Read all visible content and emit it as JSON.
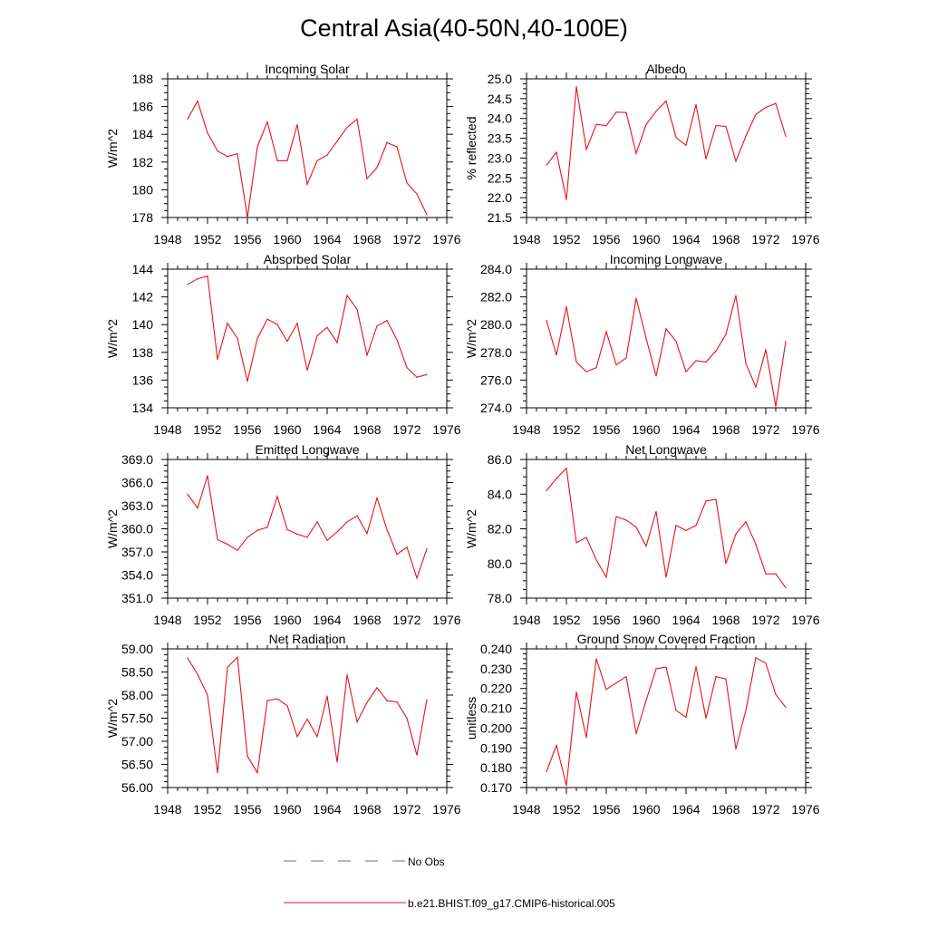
{
  "figure": {
    "title": "Central Asia(40-50N,40-100E)",
    "line_color": "#e8101a",
    "obs_color": "#5b6ab8"
  },
  "legend": {
    "obs_label": "No Obs",
    "model_label": "b.e21.BHIST.f09_g17.CMIP6-historical.005"
  },
  "chart_data": [
    {
      "type": "line",
      "title": "Incoming Solar",
      "ylabel": "W/m^2",
      "xlim": [
        1948,
        1976
      ],
      "xticks": [
        1948,
        1952,
        1956,
        1960,
        1964,
        1968,
        1972,
        1976
      ],
      "ylim": [
        178,
        188
      ],
      "yticks": [
        "178",
        "180",
        "182",
        "184",
        "186",
        "188"
      ],
      "ymajor": 2,
      "yminor": 0.5,
      "x": [
        1950,
        1951,
        1952,
        1953,
        1954,
        1955,
        1956,
        1957,
        1958,
        1959,
        1960,
        1961,
        1962,
        1963,
        1964,
        1965,
        1966,
        1967,
        1968,
        1969,
        1970,
        1971,
        1972,
        1973,
        1974
      ],
      "values": [
        185.1,
        186.4,
        184.1,
        182.8,
        182.4,
        182.6,
        178.0,
        183.1,
        184.9,
        182.1,
        182.1,
        184.7,
        180.4,
        182.1,
        182.5,
        183.5,
        184.5,
        185.1,
        180.8,
        181.6,
        183.4,
        183.1,
        180.5,
        179.7,
        178.2
      ]
    },
    {
      "type": "line",
      "title": "Albedo",
      "ylabel": "% reflected",
      "xlim": [
        1948,
        1976
      ],
      "xticks": [
        1948,
        1952,
        1956,
        1960,
        1964,
        1968,
        1972,
        1976
      ],
      "ylim": [
        21.5,
        25.0
      ],
      "yticks": [
        "21.5",
        "22.0",
        "22.5",
        "23.0",
        "23.5",
        "24.0",
        "24.5",
        "25.0"
      ],
      "ymajor": 0.5,
      "yminor": 0.125,
      "x": [
        1950,
        1951,
        1952,
        1953,
        1954,
        1955,
        1956,
        1957,
        1958,
        1959,
        1960,
        1961,
        1962,
        1963,
        1964,
        1965,
        1966,
        1967,
        1968,
        1969,
        1970,
        1971,
        1972,
        1973,
        1974
      ],
      "values": [
        22.82,
        23.15,
        21.95,
        24.8,
        23.22,
        23.85,
        23.82,
        24.16,
        24.15,
        23.12,
        23.85,
        24.18,
        24.44,
        23.52,
        23.32,
        24.35,
        22.98,
        23.82,
        23.8,
        22.92,
        23.55,
        24.1,
        24.28,
        24.38,
        23.55
      ]
    },
    {
      "type": "line",
      "title": "Absorbed Solar",
      "ylabel": "W/m^2",
      "xlim": [
        1948,
        1976
      ],
      "xticks": [
        1948,
        1952,
        1956,
        1960,
        1964,
        1968,
        1972,
        1976
      ],
      "ylim": [
        134,
        144
      ],
      "yticks": [
        "134",
        "136",
        "138",
        "140",
        "142",
        "144"
      ],
      "ymajor": 2,
      "yminor": 0.5,
      "x": [
        1950,
        1951,
        1952,
        1953,
        1954,
        1955,
        1956,
        1957,
        1958,
        1959,
        1960,
        1961,
        1962,
        1963,
        1964,
        1965,
        1966,
        1967,
        1968,
        1969,
        1970,
        1971,
        1972,
        1973,
        1974
      ],
      "values": [
        142.9,
        143.3,
        143.5,
        137.5,
        140.1,
        139.0,
        135.9,
        139.0,
        140.4,
        140.0,
        138.8,
        140.1,
        136.7,
        139.2,
        139.8,
        138.7,
        142.1,
        141.1,
        137.8,
        139.9,
        140.3,
        138.9,
        136.9,
        136.2,
        136.4
      ]
    },
    {
      "type": "line",
      "title": "Incoming Longwave",
      "ylabel": "W/m^2",
      "xlim": [
        1948,
        1976
      ],
      "xticks": [
        1948,
        1952,
        1956,
        1960,
        1964,
        1968,
        1972,
        1976
      ],
      "ylim": [
        274,
        284
      ],
      "yticks": [
        "274.0",
        "276.0",
        "278.0",
        "280.0",
        "282.0",
        "284.0"
      ],
      "ymajor": 2,
      "yminor": 0.5,
      "x": [
        1950,
        1951,
        1952,
        1953,
        1954,
        1955,
        1956,
        1957,
        1958,
        1959,
        1960,
        1961,
        1962,
        1963,
        1964,
        1965,
        1966,
        1967,
        1968,
        1969,
        1970,
        1971,
        1972,
        1973,
        1974
      ],
      "values": [
        280.3,
        277.8,
        281.3,
        277.3,
        276.6,
        276.9,
        279.5,
        277.1,
        277.6,
        281.9,
        279.0,
        276.3,
        279.7,
        278.8,
        276.6,
        277.4,
        277.3,
        278.1,
        279.3,
        282.1,
        277.2,
        275.5,
        278.2,
        274.1,
        278.8
      ]
    },
    {
      "type": "line",
      "title": "Emitted Longwave",
      "ylabel": "W/m^2",
      "xlim": [
        1948,
        1976
      ],
      "xticks": [
        1948,
        1952,
        1956,
        1960,
        1964,
        1968,
        1972,
        1976
      ],
      "ylim": [
        351,
        369
      ],
      "yticks": [
        "351.0",
        "354.0",
        "357.0",
        "360.0",
        "363.0",
        "366.0",
        "369.0"
      ],
      "ymajor": 3,
      "yminor": 0.75,
      "x": [
        1950,
        1951,
        1952,
        1953,
        1954,
        1955,
        1956,
        1957,
        1958,
        1959,
        1960,
        1961,
        1962,
        1963,
        1964,
        1965,
        1966,
        1967,
        1968,
        1969,
        1970,
        1971,
        1972,
        1973,
        1974
      ],
      "values": [
        364.5,
        362.7,
        366.9,
        358.6,
        358.0,
        357.2,
        358.9,
        359.8,
        360.2,
        364.2,
        359.9,
        359.3,
        358.9,
        360.9,
        358.5,
        359.6,
        360.9,
        361.7,
        359.4,
        364.0,
        359.9,
        356.7,
        357.6,
        353.6,
        357.4
      ]
    },
    {
      "type": "line",
      "title": "Net Longwave",
      "ylabel": "W/m^2",
      "xlim": [
        1948,
        1976
      ],
      "xticks": [
        1948,
        1952,
        1956,
        1960,
        1964,
        1968,
        1972,
        1976
      ],
      "ylim": [
        78,
        86
      ],
      "yticks": [
        "78.0",
        "80.0",
        "82.0",
        "84.0",
        "86.0"
      ],
      "ymajor": 2,
      "yminor": 0.5,
      "x": [
        1950,
        1951,
        1952,
        1953,
        1954,
        1955,
        1956,
        1957,
        1958,
        1959,
        1960,
        1961,
        1962,
        1963,
        1964,
        1965,
        1966,
        1967,
        1968,
        1969,
        1970,
        1971,
        1972,
        1973,
        1974
      ],
      "values": [
        84.2,
        84.9,
        85.5,
        81.2,
        81.5,
        80.2,
        79.2,
        82.7,
        82.5,
        82.1,
        81.0,
        83.0,
        79.2,
        82.2,
        81.9,
        82.2,
        83.6,
        83.7,
        80.0,
        81.7,
        82.4,
        81.1,
        79.4,
        79.4,
        78.6
      ]
    },
    {
      "type": "line",
      "title": "Net Radiation",
      "ylabel": "W/m^2",
      "xlim": [
        1948,
        1976
      ],
      "xticks": [
        1948,
        1952,
        1956,
        1960,
        1964,
        1968,
        1972,
        1976
      ],
      "ylim": [
        56.0,
        59.0
      ],
      "yticks": [
        "56.00",
        "56.50",
        "57.00",
        "57.50",
        "58.00",
        "58.50",
        "59.00"
      ],
      "ymajor": 0.5,
      "yminor": 0.125,
      "x": [
        1950,
        1951,
        1952,
        1953,
        1954,
        1955,
        1956,
        1957,
        1958,
        1959,
        1960,
        1961,
        1962,
        1963,
        1964,
        1965,
        1966,
        1967,
        1968,
        1969,
        1970,
        1971,
        1972,
        1973,
        1974
      ],
      "values": [
        58.8,
        58.45,
        58.0,
        56.32,
        58.6,
        58.82,
        56.68,
        56.32,
        57.88,
        57.92,
        57.77,
        57.1,
        57.48,
        57.1,
        57.98,
        56.55,
        58.44,
        57.42,
        57.84,
        58.16,
        57.88,
        57.85,
        57.5,
        56.7,
        57.9
      ]
    },
    {
      "type": "line",
      "title": "Ground Snow Covered Fraction",
      "ylabel": "unitless",
      "xlim": [
        1948,
        1976
      ],
      "xticks": [
        1948,
        1952,
        1956,
        1960,
        1964,
        1968,
        1972,
        1976
      ],
      "ylim": [
        0.17,
        0.24
      ],
      "yticks": [
        "0.170",
        "0.180",
        "0.190",
        "0.200",
        "0.210",
        "0.220",
        "0.230",
        "0.240"
      ],
      "ymajor": 0.01,
      "yminor": 0.0025,
      "x": [
        1950,
        1951,
        1952,
        1953,
        1954,
        1955,
        1956,
        1957,
        1958,
        1959,
        1960,
        1961,
        1962,
        1963,
        1964,
        1965,
        1966,
        1967,
        1968,
        1969,
        1970,
        1971,
        1972,
        1973,
        1974
      ],
      "values": [
        0.178,
        0.1913,
        0.171,
        0.2182,
        0.1952,
        0.235,
        0.2195,
        0.2228,
        0.226,
        0.1972,
        0.214,
        0.23,
        0.2308,
        0.209,
        0.2055,
        0.231,
        0.205,
        0.226,
        0.2248,
        0.1895,
        0.209,
        0.2355,
        0.2328,
        0.217,
        0.2105
      ]
    }
  ]
}
